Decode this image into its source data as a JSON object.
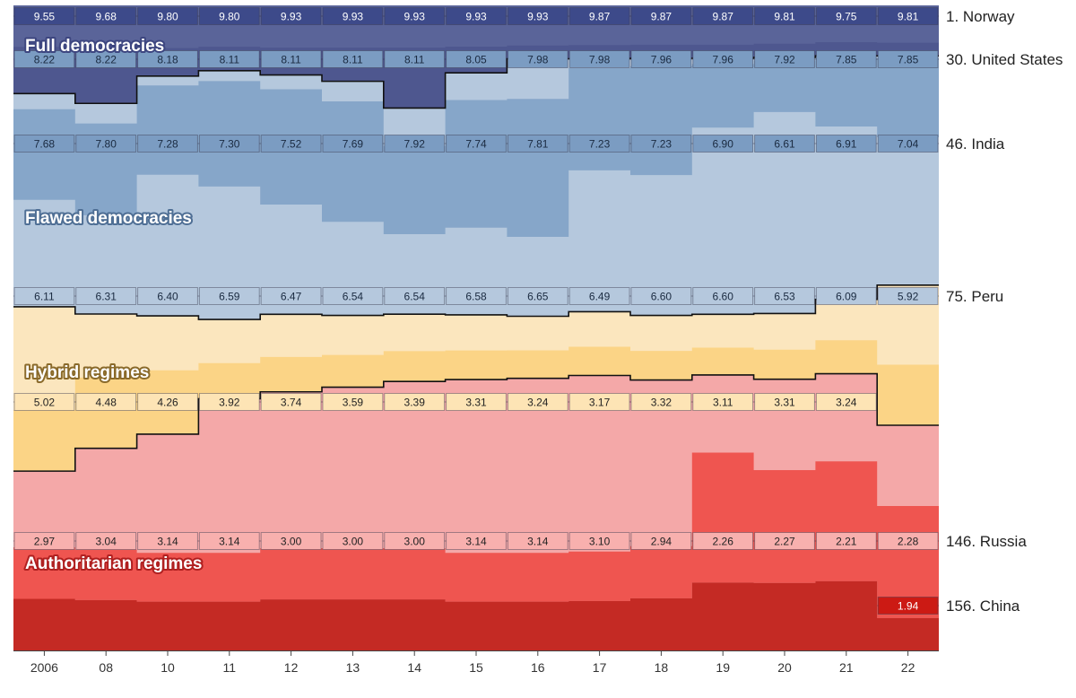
{
  "chart_data": {
    "type": "area",
    "years": [
      "2006",
      "08",
      "10",
      "11",
      "12",
      "13",
      "14",
      "15",
      "16",
      "17",
      "18",
      "19",
      "20",
      "21",
      "22"
    ],
    "ylim": [
      0,
      10
    ],
    "bands": [
      {
        "name": "Full democracies",
        "fill": "#5a6499",
        "text_stroke": "#3d4680"
      },
      {
        "name": "Flawed democracies",
        "fill": "#b5c8dd",
        "text_stroke": "#4f6f95"
      },
      {
        "name": "Hybrid regimes",
        "fill": "#fbe6be",
        "text_stroke": "#8a6a2a"
      },
      {
        "name": "Authoritarian regimes",
        "fill": "#f4a8a8",
        "text_stroke": "#b02020"
      }
    ],
    "countries": [
      {
        "name": "1. Norway",
        "color": "#3d4a8a",
        "text": "#ffffff",
        "values": [
          9.55,
          9.68,
          9.8,
          9.8,
          9.93,
          9.93,
          9.93,
          9.93,
          9.93,
          9.87,
          9.87,
          9.87,
          9.81,
          9.75,
          9.81
        ]
      },
      {
        "name": "30. United States",
        "color": "#7b9cc2",
        "text": "#1a2a40",
        "values": [
          8.22,
          8.22,
          8.18,
          8.11,
          8.11,
          8.11,
          8.11,
          8.05,
          7.98,
          7.98,
          7.96,
          7.96,
          7.92,
          7.85,
          7.85
        ]
      },
      {
        "name": "46. India",
        "color": "#7b9cc2",
        "text": "#1a2a40",
        "values": [
          7.68,
          7.8,
          7.28,
          7.3,
          7.52,
          7.69,
          7.92,
          7.74,
          7.81,
          7.23,
          7.23,
          6.9,
          6.61,
          6.91,
          7.04
        ]
      },
      {
        "name": "75. Peru",
        "color": "#b5c8dd",
        "text": "#1a2a40",
        "values": [
          6.11,
          6.31,
          6.4,
          6.59,
          6.47,
          6.54,
          6.54,
          6.58,
          6.65,
          6.49,
          6.6,
          6.6,
          6.53,
          6.09,
          5.92
        ]
      },
      {
        "name": "",
        "color": "#fde4b5",
        "text": "#222222",
        "values": [
          5.02,
          4.48,
          4.26,
          3.92,
          3.74,
          3.59,
          3.39,
          3.31,
          3.24,
          3.17,
          3.32,
          3.11,
          3.31,
          3.24,
          null
        ]
      },
      {
        "name": "146. Russia",
        "color": "#f8b0ae",
        "text": "#222222",
        "values": [
          2.97,
          3.04,
          3.14,
          3.14,
          3.0,
          3.0,
          3.0,
          3.14,
          3.14,
          3.1,
          2.94,
          2.26,
          2.27,
          2.21,
          2.28
        ]
      },
      {
        "name": "156. China",
        "color": "#cc1a14",
        "text": "#ffffff",
        "values": [
          null,
          null,
          null,
          null,
          null,
          null,
          null,
          null,
          null,
          null,
          null,
          null,
          null,
          null,
          1.94
        ]
      }
    ]
  }
}
